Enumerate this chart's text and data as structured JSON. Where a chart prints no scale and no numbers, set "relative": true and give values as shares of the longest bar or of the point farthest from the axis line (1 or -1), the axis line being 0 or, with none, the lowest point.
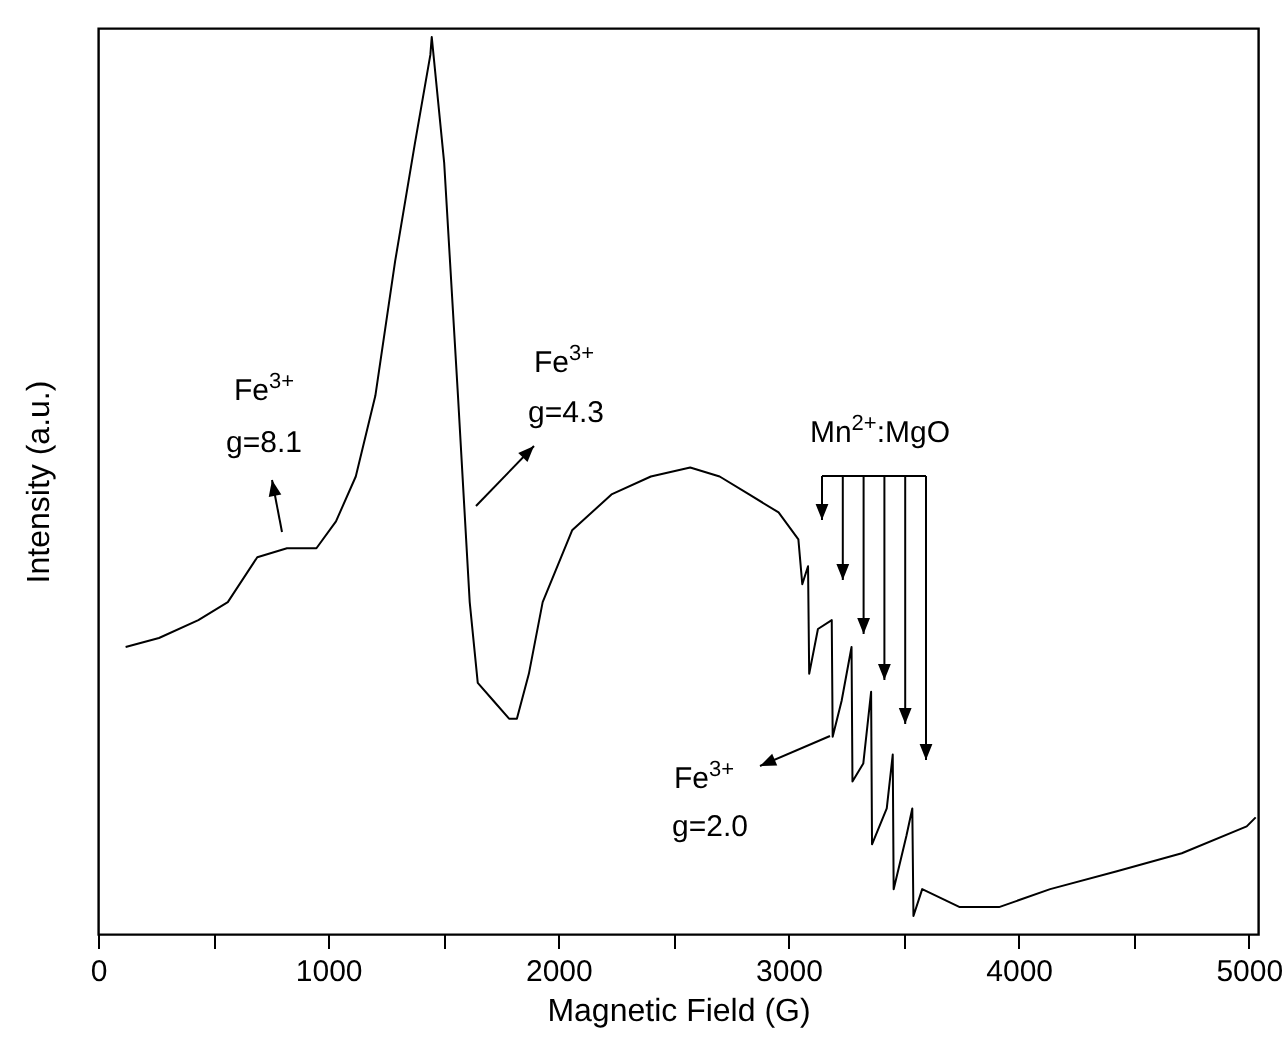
{
  "chart_data": {
    "type": "line",
    "relative": true,
    "xlabel": "Magnetic Field (G)",
    "ylabel": "Intensity (a.u.)",
    "xlim": [
      0,
      5040
    ],
    "xticks": [
      0,
      {
        "value": 500,
        "label": null
      },
      1000,
      {
        "value": 1500,
        "label": null
      },
      2000,
      {
        "value": 2500,
        "label": null
      },
      3000,
      {
        "value": 3500,
        "label": null
      },
      4000,
      {
        "value": 4500,
        "label": null
      },
      5000
    ],
    "x": [
      120,
      265,
      436,
      564,
      692,
      821,
      949,
      1034,
      1120,
      1205,
      1291,
      1376,
      1444,
      1450,
      1504,
      1564,
      1615,
      1650,
      1718,
      1786,
      1820,
      1872,
      1932,
      2060,
      2231,
      2402,
      2573,
      2701,
      2829,
      2957,
      3043,
      3060,
      3085,
      3090,
      3128,
      3188,
      3192,
      3231,
      3274,
      3278,
      3325,
      3359,
      3363,
      3427,
      3453,
      3457,
      3513,
      3538,
      3543,
      3581,
      3744,
      3915,
      4137,
      4427,
      4709,
      4991,
      5030
    ],
    "series": [
      {
        "color": "#000000",
        "values": [
          0.32,
          0.33,
          0.35,
          0.37,
          0.42,
          0.43,
          0.43,
          0.46,
          0.51,
          0.6,
          0.75,
          0.88,
          0.98,
          1,
          0.86,
          0.6,
          0.37,
          0.28,
          0.26,
          0.24,
          0.24,
          0.29,
          0.37,
          0.45,
          0.49,
          0.51,
          0.52,
          0.51,
          0.49,
          0.47,
          0.44,
          0.39,
          0.41,
          0.29,
          0.34,
          0.35,
          0.22,
          0.26,
          0.32,
          0.17,
          0.19,
          0.27,
          0.1,
          0.14,
          0.2,
          0.05,
          0.11,
          0.14,
          0.02,
          0.05,
          0.03,
          0.03,
          0.05,
          0.07,
          0.09,
          0.12,
          0.13
        ]
      }
    ],
    "annotations": [
      "Fe$^{3+}$",
      "g=8.1",
      "Fe$^{3+}$",
      "g=4.3",
      "Mn$^{2+}$:MgO",
      "Fe$^{3+}$",
      "g=2.0"
    ]
  }
}
